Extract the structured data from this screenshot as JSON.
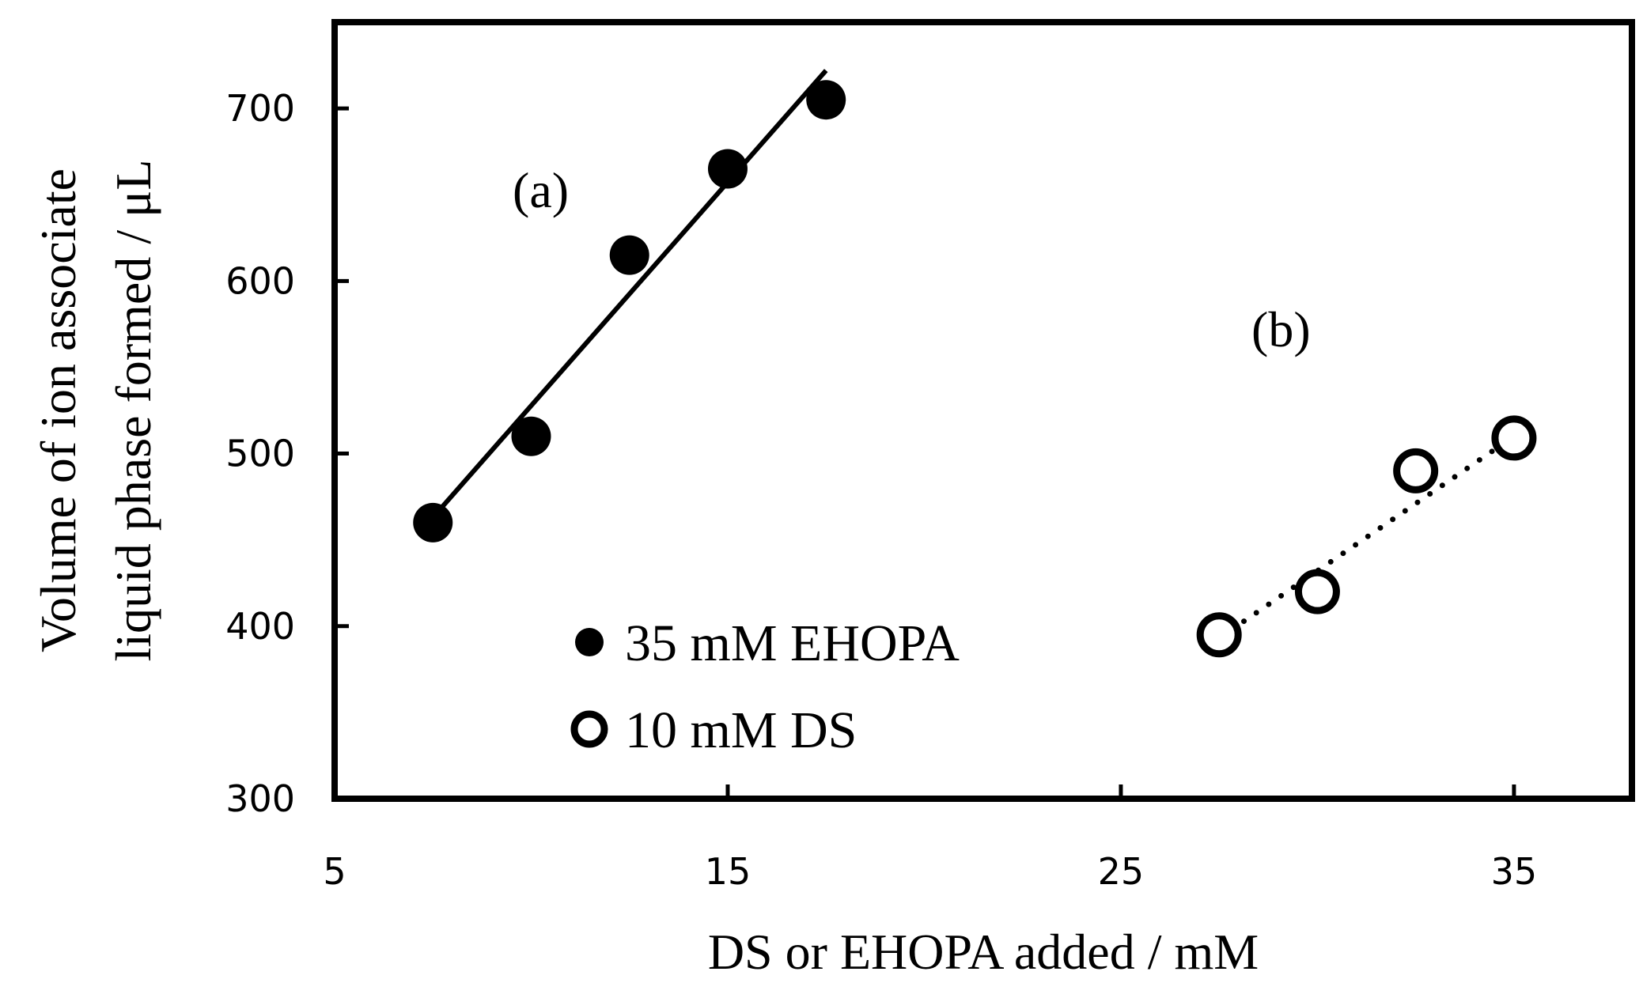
{
  "chart_data": {
    "type": "scatter",
    "title": "",
    "xlabel": "DS or EHOPA added / mM",
    "ylabel_lines": [
      "Volume of ion associate",
      "liquid phase formed / μL"
    ],
    "xlim": [
      5,
      38
    ],
    "ylim": [
      300,
      750
    ],
    "x_ticks": [
      5,
      15,
      25,
      35
    ],
    "y_ticks": [
      300,
      400,
      500,
      600,
      700
    ],
    "grid": false,
    "legend_position": "bottom-left-center",
    "series": [
      {
        "name": "35 mM EHOPA",
        "marker": "filled-circle",
        "x": [
          7.5,
          10,
          12.5,
          15,
          17.5
        ],
        "y": [
          460,
          510,
          615,
          665,
          705
        ],
        "fit": {
          "style": "solid",
          "x": [
            7.5,
            17.5
          ],
          "y": [
            463,
            722
          ]
        },
        "annotation": "(a)"
      },
      {
        "name": "10 mM DS",
        "marker": "open-circle",
        "x": [
          27.5,
          30,
          32.5,
          35
        ],
        "y": [
          395,
          420,
          490,
          509
        ],
        "fit": {
          "style": "dotted",
          "x": [
            27.5,
            35
          ],
          "y": [
            393,
            510
          ]
        },
        "annotation": "(b)"
      }
    ],
    "colors": {
      "ink": "#000000",
      "background": "#ffffff"
    }
  }
}
